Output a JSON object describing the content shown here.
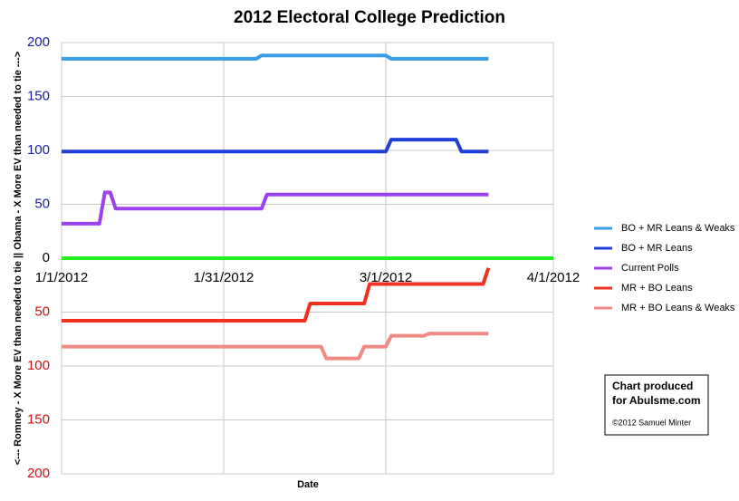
{
  "chart_data": {
    "type": "line",
    "title": "2012 Electoral College Prediction",
    "x_label": "Date",
    "y_label": "<--- Romney - X More EV than needed to tie || Obama - X More EV than needed to tie --->",
    "xlim": [
      0,
      91
    ],
    "xticks": [
      {
        "value": 0,
        "label": "1/1/2012"
      },
      {
        "value": 30,
        "label": "1/31/2012"
      },
      {
        "value": 60,
        "label": "3/1/2012"
      },
      {
        "value": 91,
        "label": "4/1/2012"
      }
    ],
    "ylim": [
      -200,
      200
    ],
    "yticks": [
      {
        "value": -200,
        "label": "200"
      },
      {
        "value": -150,
        "label": "150"
      },
      {
        "value": -100,
        "label": "100"
      },
      {
        "value": -50,
        "label": "50"
      },
      0,
      50,
      100,
      150,
      200
    ],
    "ytick_colors": {
      "positive": "#1a1aa8",
      "zero": "#000000",
      "negative": "#cc1111"
    },
    "grid": true,
    "reference_line": {
      "value": 0,
      "color": "#22ee22"
    },
    "legend": "right",
    "series": [
      {
        "name": "BO + MR Leans & Weaks",
        "color": "#3a9de8",
        "x": [
          0,
          36,
          37,
          60,
          61,
          79
        ],
        "values": [
          185,
          185,
          188,
          188,
          185,
          185
        ]
      },
      {
        "name": "BO + MR Leans",
        "color": "#1f3fd8",
        "x": [
          0,
          60,
          61,
          73,
          74,
          79
        ],
        "values": [
          99,
          99,
          110,
          110,
          99,
          99
        ]
      },
      {
        "name": "Current Polls",
        "color": "#9b42f0",
        "x": [
          0,
          7,
          8,
          9,
          10,
          37,
          38,
          79
        ],
        "values": [
          32,
          32,
          61,
          61,
          46,
          46,
          59,
          59
        ]
      },
      {
        "name": "MR + BO Leans",
        "color": "#f03020",
        "x": [
          0,
          45,
          46,
          56,
          57,
          78,
          79
        ],
        "values": [
          -58,
          -58,
          -42,
          -42,
          -24,
          -24,
          -9
        ]
      },
      {
        "name": "MR + BO Leans & Weaks",
        "color": "#f08a84",
        "x": [
          0,
          48,
          49,
          55,
          56,
          60,
          61,
          67,
          68,
          79
        ],
        "values": [
          -82,
          -82,
          -93,
          -93,
          -82,
          -82,
          -72,
          -72,
          -70,
          -70
        ]
      }
    ],
    "note": {
      "lines": [
        "Chart produced",
        "for Abulsme.com"
      ],
      "credit": "©2012 Samuel Minter"
    }
  }
}
